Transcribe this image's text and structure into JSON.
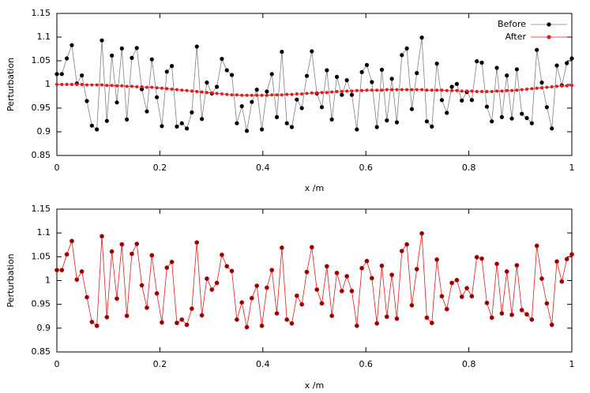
{
  "chart_data": [
    {
      "type": "line",
      "xlabel": "x /m",
      "ylabel": "Perturbation",
      "xlim": [
        0,
        1
      ],
      "ylim": [
        0.85,
        1.15
      ],
      "xticks": [
        0,
        0.2,
        0.4,
        0.6,
        0.8,
        1
      ],
      "yticks": [
        0.85,
        0.9,
        0.95,
        1,
        1.05,
        1.1,
        1.15
      ],
      "legend": "top right",
      "x": [
        0,
        0.0097,
        0.0194,
        0.0291,
        0.0388,
        0.0485,
        0.0583,
        0.068,
        0.0777,
        0.0874,
        0.0971,
        0.1068,
        0.1165,
        0.1262,
        0.1359,
        0.1456,
        0.1553,
        0.165,
        0.1748,
        0.1845,
        0.1942,
        0.2039,
        0.2136,
        0.2233,
        0.233,
        0.2427,
        0.2524,
        0.2621,
        0.2718,
        0.2816,
        0.2913,
        0.301,
        0.3107,
        0.3204,
        0.3301,
        0.3398,
        0.3495,
        0.3592,
        0.3689,
        0.3786,
        0.3883,
        0.3981,
        0.4078,
        0.4175,
        0.4272,
        0.4369,
        0.4466,
        0.4563,
        0.466,
        0.4757,
        0.4854,
        0.4951,
        0.5049,
        0.5146,
        0.5243,
        0.534,
        0.5437,
        0.5534,
        0.5631,
        0.5728,
        0.5825,
        0.5922,
        0.6019,
        0.6117,
        0.6214,
        0.6311,
        0.6408,
        0.6505,
        0.6602,
        0.6699,
        0.6796,
        0.6893,
        0.699,
        0.7087,
        0.7184,
        0.7282,
        0.7379,
        0.7476,
        0.7573,
        0.767,
        0.7767,
        0.7864,
        0.7961,
        0.8058,
        0.8155,
        0.8252,
        0.835,
        0.8447,
        0.8544,
        0.8641,
        0.8738,
        0.8835,
        0.8932,
        0.9029,
        0.9126,
        0.9223,
        0.932,
        0.9417,
        0.9515,
        0.9612,
        0.9709,
        0.9806,
        0.9903,
        1
      ],
      "series": [
        {
          "name": "Before",
          "color": "#000000",
          "line_color": "#808080",
          "values": [
            1.022,
            1.022,
            1.055,
            1.083,
            1.002,
            1.019,
            0.965,
            0.913,
            0.905,
            1.093,
            0.923,
            1.061,
            0.962,
            1.076,
            0.926,
            1.056,
            1.077,
            0.99,
            0.943,
            1.053,
            0.973,
            0.912,
            1.027,
            1.039,
            0.911,
            0.918,
            0.907,
            0.941,
            1.08,
            0.927,
            1.004,
            0.981,
            0.995,
            1.054,
            1.03,
            1.02,
            0.918,
            0.954,
            0.902,
            0.963,
            0.989,
            0.905,
            0.985,
            1.022,
            0.931,
            1.069,
            0.918,
            0.91,
            0.968,
            0.95,
            1.018,
            1.07,
            0.981,
            0.952,
            1.03,
            0.926,
            1.016,
            0.978,
            1.009,
            0.978,
            0.905,
            1.026,
            1.041,
            1.005,
            0.91,
            1.031,
            0.924,
            1.012,
            0.92,
            1.062,
            1.076,
            0.948,
            1.024,
            1.099,
            0.922,
            0.911,
            1.044,
            0.967,
            0.94,
            0.995,
            1.001,
            0.966,
            0.984,
            0.967,
            1.049,
            1.046,
            0.953,
            0.922,
            1.035,
            0.931,
            1.019,
            0.928,
            1.032,
            0.938,
            0.929,
            0.918,
            1.073,
            1.004,
            0.952,
            0.907,
            1.04,
            0.998,
            1.045,
            1.055
          ]
        },
        {
          "name": "After",
          "color": "#e41a1c",
          "line_color": "#e41a1c",
          "values": [
            1.0,
            1.0,
            1.0,
            1.0,
            1.0,
            1.0,
            0.999,
            0.999,
            0.999,
            0.999,
            0.998,
            0.998,
            0.997,
            0.997,
            0.996,
            0.996,
            0.995,
            0.995,
            0.994,
            0.994,
            0.993,
            0.992,
            0.991,
            0.99,
            0.989,
            0.988,
            0.987,
            0.986,
            0.985,
            0.984,
            0.983,
            0.982,
            0.981,
            0.98,
            0.979,
            0.978,
            0.978,
            0.977,
            0.977,
            0.977,
            0.977,
            0.977,
            0.977,
            0.978,
            0.978,
            0.978,
            0.979,
            0.979,
            0.98,
            0.98,
            0.981,
            0.982,
            0.982,
            0.983,
            0.983,
            0.984,
            0.985,
            0.985,
            0.986,
            0.986,
            0.987,
            0.987,
            0.988,
            0.988,
            0.988,
            0.988,
            0.989,
            0.989,
            0.989,
            0.989,
            0.989,
            0.989,
            0.989,
            0.989,
            0.988,
            0.988,
            0.988,
            0.988,
            0.987,
            0.987,
            0.987,
            0.986,
            0.986,
            0.986,
            0.985,
            0.985,
            0.985,
            0.985,
            0.986,
            0.986,
            0.987,
            0.987,
            0.988,
            0.989,
            0.99,
            0.991,
            0.992,
            0.993,
            0.994,
            0.995,
            0.996,
            0.997,
            0.997,
            0.998
          ]
        }
      ]
    },
    {
      "type": "line",
      "xlabel": "x /m",
      "ylabel": "Perturbation",
      "xlim": [
        0,
        1
      ],
      "ylim": [
        0.85,
        1.15
      ],
      "xticks": [
        0,
        0.2,
        0.4,
        0.6,
        0.8,
        1
      ],
      "yticks": [
        0.85,
        0.9,
        0.95,
        1,
        1.05,
        1.1,
        1.15
      ],
      "x": [
        0,
        0.0097,
        0.0194,
        0.0291,
        0.0388,
        0.0485,
        0.0583,
        0.068,
        0.0777,
        0.0874,
        0.0971,
        0.1068,
        0.1165,
        0.1262,
        0.1359,
        0.1456,
        0.1553,
        0.165,
        0.1748,
        0.1845,
        0.1942,
        0.2039,
        0.2136,
        0.2233,
        0.233,
        0.2427,
        0.2524,
        0.2621,
        0.2718,
        0.2816,
        0.2913,
        0.301,
        0.3107,
        0.3204,
        0.3301,
        0.3398,
        0.3495,
        0.3592,
        0.3689,
        0.3786,
        0.3883,
        0.3981,
        0.4078,
        0.4175,
        0.4272,
        0.4369,
        0.4466,
        0.4563,
        0.466,
        0.4757,
        0.4854,
        0.4951,
        0.5049,
        0.5146,
        0.5243,
        0.534,
        0.5437,
        0.5534,
        0.5631,
        0.5728,
        0.5825,
        0.5922,
        0.6019,
        0.6117,
        0.6214,
        0.6311,
        0.6408,
        0.6505,
        0.6602,
        0.6699,
        0.6796,
        0.6893,
        0.699,
        0.7087,
        0.7184,
        0.7282,
        0.7379,
        0.7476,
        0.7573,
        0.767,
        0.7767,
        0.7864,
        0.7961,
        0.8058,
        0.8155,
        0.8252,
        0.835,
        0.8447,
        0.8544,
        0.8641,
        0.8738,
        0.8835,
        0.8932,
        0.9029,
        0.9126,
        0.9223,
        0.932,
        0.9417,
        0.9515,
        0.9612,
        0.9709,
        0.9806,
        0.9903,
        1
      ],
      "series": [
        {
          "color": "#8b0000",
          "line_color": "#e41a1c",
          "values": [
            1.022,
            1.022,
            1.055,
            1.083,
            1.002,
            1.019,
            0.965,
            0.913,
            0.905,
            1.093,
            0.923,
            1.061,
            0.962,
            1.076,
            0.926,
            1.056,
            1.077,
            0.99,
            0.943,
            1.053,
            0.973,
            0.912,
            1.027,
            1.039,
            0.911,
            0.918,
            0.907,
            0.941,
            1.08,
            0.927,
            1.004,
            0.981,
            0.995,
            1.054,
            1.03,
            1.02,
            0.918,
            0.954,
            0.902,
            0.963,
            0.989,
            0.905,
            0.985,
            1.022,
            0.931,
            1.069,
            0.918,
            0.91,
            0.968,
            0.95,
            1.018,
            1.07,
            0.981,
            0.952,
            1.03,
            0.926,
            1.016,
            0.978,
            1.009,
            0.978,
            0.905,
            1.026,
            1.041,
            1.005,
            0.91,
            1.031,
            0.924,
            1.012,
            0.92,
            1.062,
            1.076,
            0.948,
            1.024,
            1.099,
            0.922,
            0.911,
            1.044,
            0.967,
            0.94,
            0.995,
            1.001,
            0.966,
            0.984,
            0.967,
            1.049,
            1.046,
            0.953,
            0.922,
            1.035,
            0.931,
            1.019,
            0.928,
            1.032,
            0.938,
            0.929,
            0.918,
            1.073,
            1.004,
            0.952,
            0.907,
            1.04,
            0.998,
            1.045,
            1.055
          ]
        }
      ]
    }
  ]
}
